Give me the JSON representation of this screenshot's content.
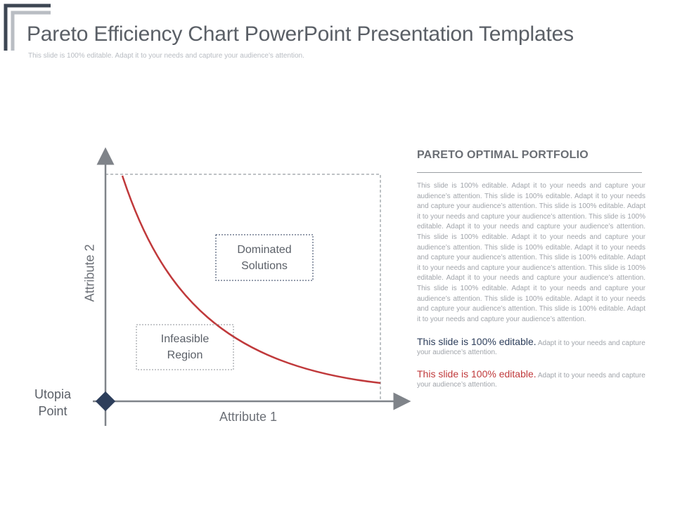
{
  "header": {
    "title": "Pareto Efficiency Chart PowerPoint Presentation Templates",
    "subtitle": "This slide is 100% editable. Adapt it to your needs and capture your audience’s attention."
  },
  "diagram": {
    "y_axis_label": "Attribute 2",
    "x_axis_label": "Attribute 1",
    "utopia_label": "Utopia\nPoint",
    "dominated_label": "Dominated\nSolutions",
    "infeasible_label": "Infeasible\nRegion",
    "colors": {
      "curve": "#c0393b",
      "utopia_marker": "#2d3e5b",
      "axis": "#7f8389",
      "dashed": "#a9adb2"
    }
  },
  "panel": {
    "heading": "PARETO OPTIMAL PORTFOLIO",
    "body": "This slide is 100% editable. Adapt it to your needs and capture your audience’s attention. This slide is 100% editable. Adapt it to your needs and capture your audience’s attention. This slide is 100% editable. Adapt it to your needs and capture your audience’s attention. This slide is 100% editable. Adapt it to your needs and capture your audience’s attention. This slide is 100% editable. Adapt it to your needs and capture your audience’s attention. This slide is 100% editable. Adapt it to your needs and capture your audience’s attention. This slide is 100% editable. Adapt it to your needs and capture your audience’s attention. This slide is 100% editable. Adapt it to your needs and capture your audience’s attention. This slide is 100% editable. Adapt it to your needs and capture your audience’s attention. This slide is 100% editable. Adapt it to your needs and capture your audience’s attention. This slide is 100% editable. Adapt it to your needs and capture your audience’s attention.",
    "notes": [
      {
        "highlight": "This slide is 100% editable.",
        "rest": " Adapt it to your needs and capture your audience’s attention."
      },
      {
        "highlight": "This slide is 100% editable.",
        "rest": " Adapt it to your needs and capture your audience’s attention."
      }
    ]
  }
}
